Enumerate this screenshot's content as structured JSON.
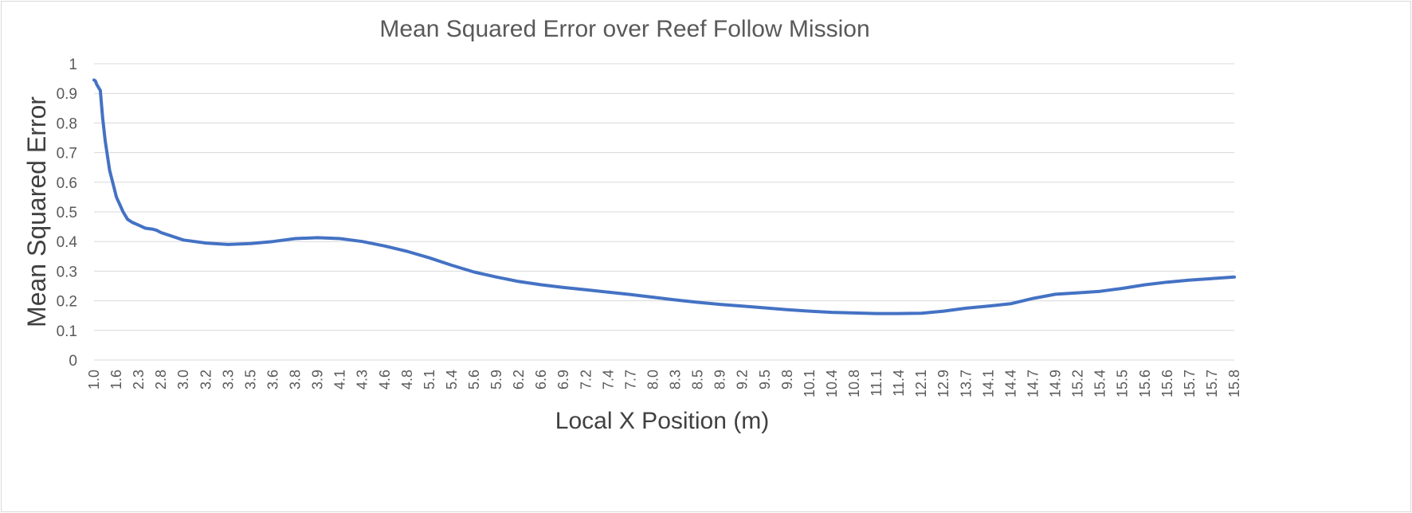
{
  "chart_data": {
    "type": "line",
    "title": "Mean Squared Error over Reef Follow Mission",
    "xlabel": "Local X Position (m)",
    "ylabel": "Mean Squared Error",
    "ylim": [
      0,
      1
    ],
    "yticks": [
      "0",
      "0.1",
      "0.2",
      "0.3",
      "0.4",
      "0.5",
      "0.6",
      "0.7",
      "0.8",
      "0.9",
      "1"
    ],
    "grid": true,
    "legend": "none",
    "line_color": "#4472c4",
    "categories": [
      "1.0",
      "1.6",
      "2.3",
      "2.8",
      "3.0",
      "3.2",
      "3.3",
      "3.5",
      "3.6",
      "3.8",
      "3.9",
      "4.1",
      "4.3",
      "4.6",
      "4.8",
      "5.1",
      "5.4",
      "5.6",
      "5.9",
      "6.2",
      "6.6",
      "6.9",
      "7.2",
      "7.4",
      "7.7",
      "8.0",
      "8.3",
      "8.5",
      "8.9",
      "9.2",
      "9.5",
      "9.8",
      "10.1",
      "10.4",
      "10.8",
      "11.1",
      "11.4",
      "12.1",
      "12.9",
      "13.7",
      "14.1",
      "14.4",
      "14.7",
      "14.9",
      "15.2",
      "15.4",
      "15.5",
      "15.6",
      "15.6",
      "15.7",
      "15.7",
      "15.8"
    ],
    "series": [
      {
        "points": [
          [
            0,
            0.945
          ],
          [
            0.06,
            0.942
          ],
          [
            0.12,
            0.93
          ],
          [
            0.2,
            0.92
          ],
          [
            0.28,
            0.91
          ],
          [
            0.38,
            0.82
          ],
          [
            0.5,
            0.74
          ],
          [
            0.7,
            0.64
          ],
          [
            1.0,
            0.55
          ],
          [
            1.3,
            0.5
          ],
          [
            1.5,
            0.475
          ],
          [
            1.7,
            0.465
          ],
          [
            2.0,
            0.455
          ],
          [
            2.3,
            0.445
          ],
          [
            2.6,
            0.442
          ],
          [
            2.8,
            0.438
          ],
          [
            3.0,
            0.43
          ],
          [
            4.0,
            0.405
          ],
          [
            5.0,
            0.395
          ],
          [
            6.0,
            0.39
          ],
          [
            7.0,
            0.393
          ],
          [
            8.0,
            0.4
          ],
          [
            9.0,
            0.41
          ],
          [
            10.0,
            0.413
          ],
          [
            11.0,
            0.41
          ],
          [
            12.0,
            0.4
          ],
          [
            13.0,
            0.385
          ],
          [
            14.0,
            0.367
          ],
          [
            15.0,
            0.345
          ],
          [
            16.0,
            0.32
          ],
          [
            17.0,
            0.297
          ],
          [
            18.0,
            0.28
          ],
          [
            19.0,
            0.265
          ],
          [
            20.0,
            0.254
          ],
          [
            21.0,
            0.245
          ],
          [
            22.0,
            0.237
          ],
          [
            23.0,
            0.229
          ],
          [
            24.0,
            0.221
          ],
          [
            25.0,
            0.212
          ],
          [
            26.0,
            0.203
          ],
          [
            27.0,
            0.195
          ],
          [
            28.0,
            0.188
          ],
          [
            29.0,
            0.182
          ],
          [
            30.0,
            0.176
          ],
          [
            31.0,
            0.17
          ],
          [
            32.0,
            0.165
          ],
          [
            33.0,
            0.161
          ],
          [
            34.0,
            0.159
          ],
          [
            35.0,
            0.157
          ],
          [
            36.0,
            0.157
          ],
          [
            37.0,
            0.158
          ],
          [
            38.0,
            0.165
          ],
          [
            39.0,
            0.175
          ],
          [
            40.0,
            0.182
          ],
          [
            41.0,
            0.19
          ],
          [
            42.0,
            0.208
          ],
          [
            43.0,
            0.222
          ],
          [
            44.0,
            0.227
          ],
          [
            45.0,
            0.232
          ],
          [
            46.0,
            0.242
          ],
          [
            47.0,
            0.254
          ],
          [
            48.0,
            0.263
          ],
          [
            49.0,
            0.27
          ],
          [
            50.0,
            0.275
          ],
          [
            51.0,
            0.28
          ]
        ]
      }
    ]
  }
}
